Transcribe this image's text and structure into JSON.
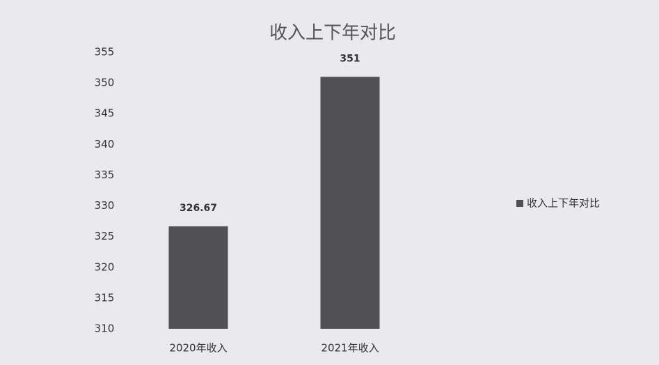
{
  "chart_data": {
    "type": "bar",
    "title": "收入上下年对比",
    "categories": [
      "2020年收入",
      "2021年收入"
    ],
    "series": [
      {
        "name": "收入上下年对比",
        "color": "#505055",
        "values": [
          326.67,
          351
        ]
      }
    ],
    "ylim": [
      310,
      355
    ],
    "yticks": [
      310,
      315,
      320,
      325,
      330,
      335,
      340,
      345,
      350,
      355
    ],
    "grid": false,
    "legend": "right"
  }
}
